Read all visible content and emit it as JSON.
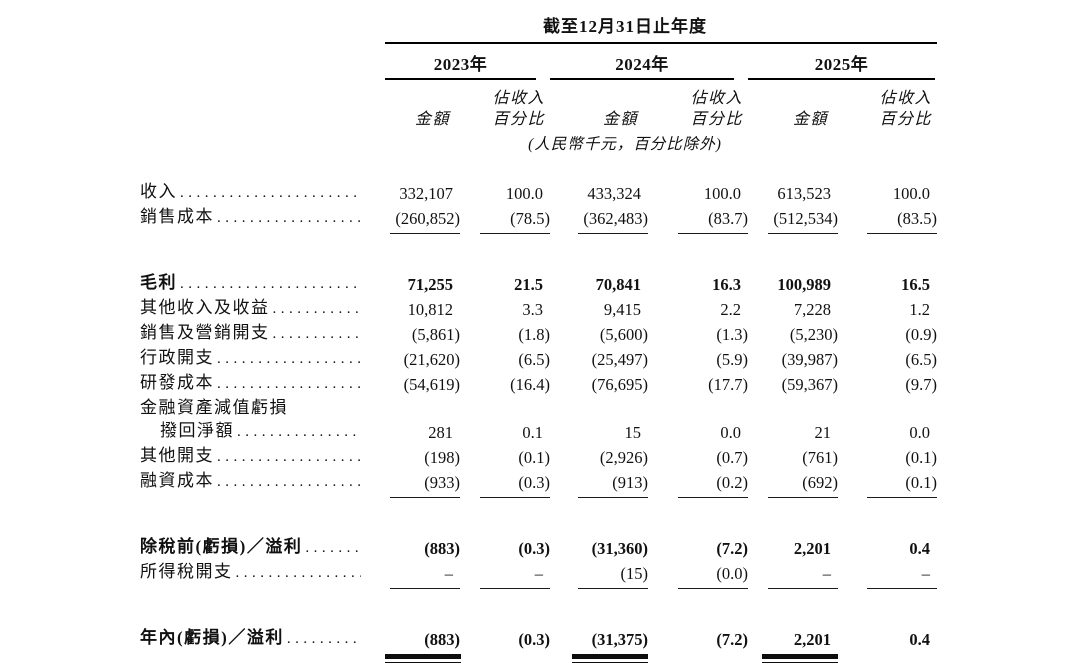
{
  "colors": {
    "text": "#111111",
    "background": "#ffffff",
    "rule": "#000000"
  },
  "table": {
    "title": "截至12月31日止年度",
    "note": "(人民幣千元，百分比除外)",
    "years": [
      {
        "label": "2023年"
      },
      {
        "label": "2024年"
      },
      {
        "label": "2025年"
      }
    ],
    "col_headers": {
      "amount": "金額",
      "pct_line1": "佔收入",
      "pct_line2": "百分比"
    },
    "leader_dots": "..................................................................",
    "rows": [
      {
        "label": "收入",
        "bold": false,
        "indent": false,
        "dots": true,
        "values": [
          "332,107",
          "100.0",
          "433,324",
          "100.0",
          "613,523",
          "100.0"
        ]
      },
      {
        "label": "銷售成本",
        "bold": false,
        "indent": false,
        "dots": true,
        "values": [
          "(260,852)",
          "(78.5)",
          "(362,483)",
          "(83.7)",
          "(512,534)",
          "(83.5)"
        ],
        "underline_after": true,
        "space_after": true
      },
      {
        "label": "毛利",
        "bold": true,
        "indent": false,
        "dots": true,
        "values": [
          "71,255",
          "21.5",
          "70,841",
          "16.3",
          "100,989",
          "16.5"
        ]
      },
      {
        "label": "其他收入及收益",
        "bold": false,
        "indent": false,
        "dots": true,
        "values": [
          "10,812",
          "3.3",
          "9,415",
          "2.2",
          "7,228",
          "1.2"
        ]
      },
      {
        "label": "銷售及營銷開支",
        "bold": false,
        "indent": false,
        "dots": true,
        "values": [
          "(5,861)",
          "(1.8)",
          "(5,600)",
          "(1.3)",
          "(5,230)",
          "(0.9)"
        ]
      },
      {
        "label": "行政開支",
        "bold": false,
        "indent": false,
        "dots": true,
        "values": [
          "(21,620)",
          "(6.5)",
          "(25,497)",
          "(5.9)",
          "(39,987)",
          "(6.5)"
        ]
      },
      {
        "label": "研發成本",
        "bold": false,
        "indent": false,
        "dots": true,
        "values": [
          "(54,619)",
          "(16.4)",
          "(76,695)",
          "(17.7)",
          "(59,367)",
          "(9.7)"
        ]
      },
      {
        "label": "金融資產減值虧損",
        "bold": false,
        "indent": false,
        "dots": false,
        "values": [
          "",
          "",
          "",
          "",
          "",
          ""
        ]
      },
      {
        "label": "撥回淨額",
        "bold": false,
        "indent": true,
        "dots": true,
        "values": [
          "281",
          "0.1",
          "15",
          "0.0",
          "21",
          "0.0"
        ]
      },
      {
        "label": "其他開支",
        "bold": false,
        "indent": false,
        "dots": true,
        "values": [
          "(198)",
          "(0.1)",
          "(2,926)",
          "(0.7)",
          "(761)",
          "(0.1)"
        ]
      },
      {
        "label": "融資成本",
        "bold": false,
        "indent": false,
        "dots": true,
        "values": [
          "(933)",
          "(0.3)",
          "(913)",
          "(0.2)",
          "(692)",
          "(0.1)"
        ],
        "underline_after": true,
        "space_after": true
      },
      {
        "label": "除稅前(虧損)／溢利",
        "bold": true,
        "indent": false,
        "dots": true,
        "values": [
          "(883)",
          "(0.3)",
          "(31,360)",
          "(7.2)",
          "2,201",
          "0.4"
        ]
      },
      {
        "label": "所得稅開支",
        "bold": false,
        "indent": false,
        "dots": true,
        "values": [
          "–",
          "–",
          "(15)",
          "(0.0)",
          "–",
          "–"
        ],
        "underline_after": true,
        "space_after": true
      },
      {
        "label": "年內(虧損)／溢利",
        "bold": true,
        "indent": false,
        "dots": true,
        "values": [
          "(883)",
          "(0.3)",
          "(31,375)",
          "(7.2)",
          "2,201",
          "0.4"
        ],
        "double_underline_after": true
      }
    ]
  }
}
